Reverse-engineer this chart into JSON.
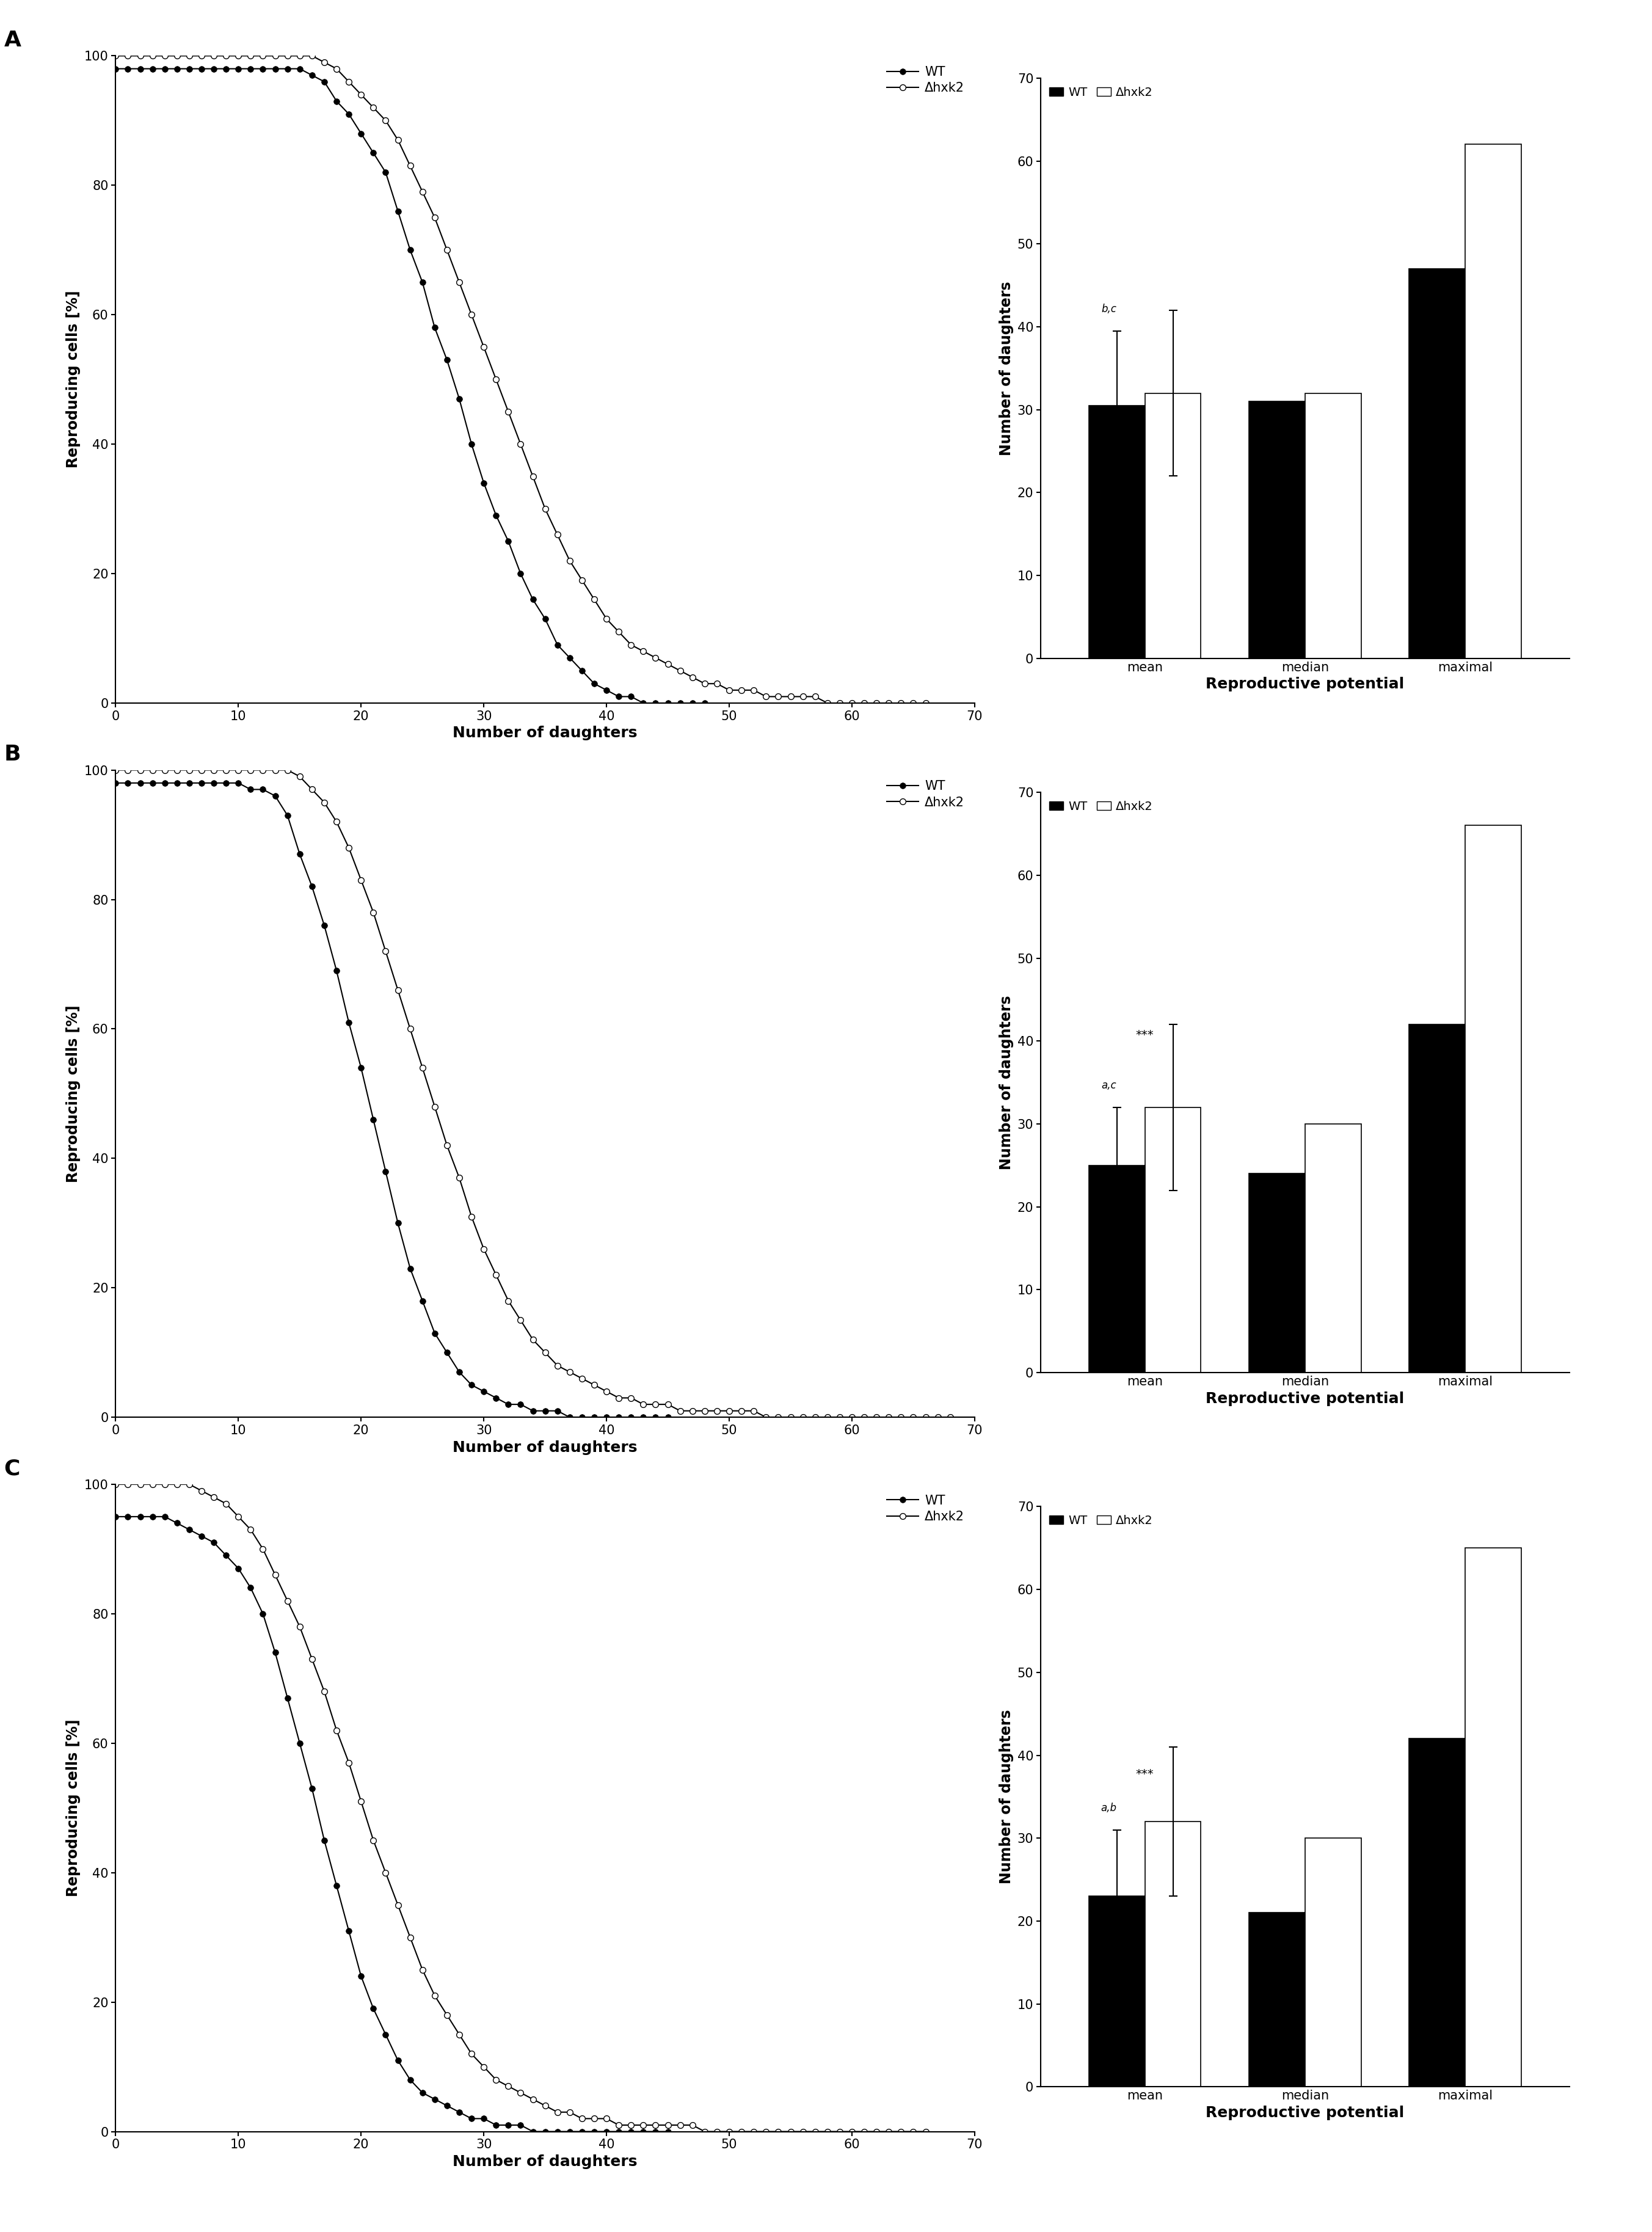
{
  "panel_labels": [
    "A",
    "B",
    "C"
  ],
  "line_xlabel": "Number of daughters",
  "line_ylabel": "Reproducing cells [%]",
  "bar_xlabel": "Reproductive potential",
  "bar_ylabel": "Number of daughters",
  "legend_line_wt": "WT",
  "legend_line_mut": "Δhxk2",
  "bar_categories": [
    "mean",
    "median",
    "maximal"
  ],
  "bar_ylim": [
    0,
    70
  ],
  "bar_yticks": [
    0,
    10,
    20,
    30,
    40,
    50,
    60,
    70
  ],
  "line_xlim": [
    0,
    70
  ],
  "line_ylim": [
    0,
    100
  ],
  "line_yticks": [
    0,
    20,
    40,
    60,
    80,
    100
  ],
  "line_xticks": [
    0,
    10,
    20,
    30,
    40,
    50,
    60,
    70
  ],
  "panelA": {
    "wt_x": [
      0,
      1,
      2,
      3,
      4,
      5,
      6,
      7,
      8,
      9,
      10,
      11,
      12,
      13,
      14,
      15,
      16,
      17,
      18,
      19,
      20,
      21,
      22,
      23,
      24,
      25,
      26,
      27,
      28,
      29,
      30,
      31,
      32,
      33,
      34,
      35,
      36,
      37,
      38,
      39,
      40,
      41,
      42,
      43,
      44,
      45,
      46,
      47,
      48
    ],
    "wt_y": [
      98,
      98,
      98,
      98,
      98,
      98,
      98,
      98,
      98,
      98,
      98,
      98,
      98,
      98,
      98,
      98,
      97,
      96,
      93,
      91,
      88,
      85,
      82,
      76,
      70,
      65,
      58,
      53,
      47,
      40,
      34,
      29,
      25,
      20,
      16,
      13,
      9,
      7,
      5,
      3,
      2,
      1,
      1,
      0,
      0,
      0,
      0,
      0,
      0
    ],
    "mut_x": [
      0,
      1,
      2,
      3,
      4,
      5,
      6,
      7,
      8,
      9,
      10,
      11,
      12,
      13,
      14,
      15,
      16,
      17,
      18,
      19,
      20,
      21,
      22,
      23,
      24,
      25,
      26,
      27,
      28,
      29,
      30,
      31,
      32,
      33,
      34,
      35,
      36,
      37,
      38,
      39,
      40,
      41,
      42,
      43,
      44,
      45,
      46,
      47,
      48,
      49,
      50,
      51,
      52,
      53,
      54,
      55,
      56,
      57,
      58,
      59,
      60,
      61,
      62,
      63,
      64,
      65,
      66
    ],
    "mut_y": [
      100,
      100,
      100,
      100,
      100,
      100,
      100,
      100,
      100,
      100,
      100,
      100,
      100,
      100,
      100,
      100,
      100,
      99,
      98,
      96,
      94,
      92,
      90,
      87,
      83,
      79,
      75,
      70,
      65,
      60,
      55,
      50,
      45,
      40,
      35,
      30,
      26,
      22,
      19,
      16,
      13,
      11,
      9,
      8,
      7,
      6,
      5,
      4,
      3,
      3,
      2,
      2,
      2,
      1,
      1,
      1,
      1,
      1,
      0,
      0,
      0,
      0,
      0,
      0,
      0,
      0,
      0
    ],
    "bar_wt_mean": 30.5,
    "bar_wt_mean_err": 9,
    "bar_mut_mean": 32,
    "bar_mut_mean_err": 10,
    "bar_wt_median": 31,
    "bar_mut_median": 32,
    "bar_wt_max": 47,
    "bar_mut_max": 62,
    "annotation": "b,c",
    "annotation2": null
  },
  "panelB": {
    "wt_x": [
      0,
      1,
      2,
      3,
      4,
      5,
      6,
      7,
      8,
      9,
      10,
      11,
      12,
      13,
      14,
      15,
      16,
      17,
      18,
      19,
      20,
      21,
      22,
      23,
      24,
      25,
      26,
      27,
      28,
      29,
      30,
      31,
      32,
      33,
      34,
      35,
      36,
      37,
      38,
      39,
      40,
      41,
      42,
      43,
      44,
      45
    ],
    "wt_y": [
      98,
      98,
      98,
      98,
      98,
      98,
      98,
      98,
      98,
      98,
      98,
      97,
      97,
      96,
      93,
      87,
      82,
      76,
      69,
      61,
      54,
      46,
      38,
      30,
      23,
      18,
      13,
      10,
      7,
      5,
      4,
      3,
      2,
      2,
      1,
      1,
      1,
      0,
      0,
      0,
      0,
      0,
      0,
      0,
      0,
      0
    ],
    "mut_x": [
      0,
      1,
      2,
      3,
      4,
      5,
      6,
      7,
      8,
      9,
      10,
      11,
      12,
      13,
      14,
      15,
      16,
      17,
      18,
      19,
      20,
      21,
      22,
      23,
      24,
      25,
      26,
      27,
      28,
      29,
      30,
      31,
      32,
      33,
      34,
      35,
      36,
      37,
      38,
      39,
      40,
      41,
      42,
      43,
      44,
      45,
      46,
      47,
      48,
      49,
      50,
      51,
      52,
      53,
      54,
      55,
      56,
      57,
      58,
      59,
      60,
      61,
      62,
      63,
      64,
      65,
      66,
      67,
      68
    ],
    "mut_y": [
      100,
      100,
      100,
      100,
      100,
      100,
      100,
      100,
      100,
      100,
      100,
      100,
      100,
      100,
      100,
      99,
      97,
      95,
      92,
      88,
      83,
      78,
      72,
      66,
      60,
      54,
      48,
      42,
      37,
      31,
      26,
      22,
      18,
      15,
      12,
      10,
      8,
      7,
      6,
      5,
      4,
      3,
      3,
      2,
      2,
      2,
      1,
      1,
      1,
      1,
      1,
      1,
      1,
      0,
      0,
      0,
      0,
      0,
      0,
      0,
      0,
      0,
      0,
      0,
      0,
      0,
      0,
      0,
      0
    ],
    "bar_wt_mean": 25,
    "bar_wt_mean_err": 7,
    "bar_mut_mean": 32,
    "bar_mut_mean_err": 10,
    "bar_wt_median": 24,
    "bar_mut_median": 30,
    "bar_wt_max": 42,
    "bar_mut_max": 66,
    "annotation": "a,c",
    "annotation2": "***"
  },
  "panelC": {
    "wt_x": [
      0,
      1,
      2,
      3,
      4,
      5,
      6,
      7,
      8,
      9,
      10,
      11,
      12,
      13,
      14,
      15,
      16,
      17,
      18,
      19,
      20,
      21,
      22,
      23,
      24,
      25,
      26,
      27,
      28,
      29,
      30,
      31,
      32,
      33,
      34,
      35,
      36,
      37,
      38,
      39,
      40,
      41,
      42,
      43,
      44,
      45
    ],
    "wt_y": [
      95,
      95,
      95,
      95,
      95,
      94,
      93,
      92,
      91,
      89,
      87,
      84,
      80,
      74,
      67,
      60,
      53,
      45,
      38,
      31,
      24,
      19,
      15,
      11,
      8,
      6,
      5,
      4,
      3,
      2,
      2,
      1,
      1,
      1,
      0,
      0,
      0,
      0,
      0,
      0,
      0,
      0,
      0,
      0,
      0,
      0
    ],
    "mut_x": [
      0,
      1,
      2,
      3,
      4,
      5,
      6,
      7,
      8,
      9,
      10,
      11,
      12,
      13,
      14,
      15,
      16,
      17,
      18,
      19,
      20,
      21,
      22,
      23,
      24,
      25,
      26,
      27,
      28,
      29,
      30,
      31,
      32,
      33,
      34,
      35,
      36,
      37,
      38,
      39,
      40,
      41,
      42,
      43,
      44,
      45,
      46,
      47,
      48,
      49,
      50,
      51,
      52,
      53,
      54,
      55,
      56,
      57,
      58,
      59,
      60,
      61,
      62,
      63,
      64,
      65,
      66
    ],
    "mut_y": [
      100,
      100,
      100,
      100,
      100,
      100,
      100,
      99,
      98,
      97,
      95,
      93,
      90,
      86,
      82,
      78,
      73,
      68,
      62,
      57,
      51,
      45,
      40,
      35,
      30,
      25,
      21,
      18,
      15,
      12,
      10,
      8,
      7,
      6,
      5,
      4,
      3,
      3,
      2,
      2,
      2,
      1,
      1,
      1,
      1,
      1,
      1,
      1,
      0,
      0,
      0,
      0,
      0,
      0,
      0,
      0,
      0,
      0,
      0,
      0,
      0,
      0,
      0,
      0,
      0,
      0,
      0
    ],
    "bar_wt_mean": 23,
    "bar_wt_mean_err": 8,
    "bar_mut_mean": 32,
    "bar_mut_mean_err": 9,
    "bar_wt_median": 21,
    "bar_mut_median": 30,
    "bar_wt_max": 42,
    "bar_mut_max": 65,
    "annotation": "a,b",
    "annotation2": "***"
  }
}
